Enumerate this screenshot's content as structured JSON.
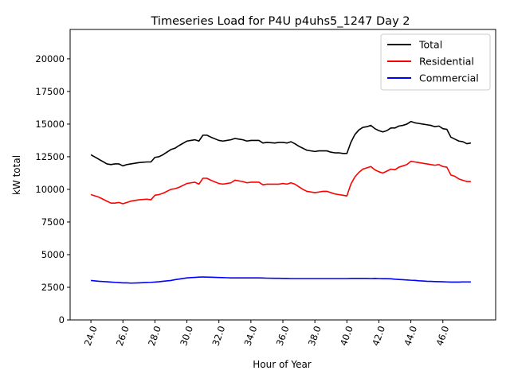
{
  "chart_data": {
    "type": "line",
    "title": "Timeseries Load for P4U p4uhs5_1247  Day 2",
    "xlabel": "Hour of Year",
    "ylabel": "kW total",
    "xlim": [
      22.7,
      49.3
    ],
    "ylim": [
      0,
      22250
    ],
    "xticks": [
      24,
      26,
      28,
      30,
      32,
      34,
      36,
      38,
      40,
      42,
      44,
      46
    ],
    "xtick_labels": [
      "24.0",
      "26.0",
      "28.0",
      "30.0",
      "32.0",
      "34.0",
      "36.0",
      "38.0",
      "40.0",
      "42.0",
      "44.0",
      "46.0"
    ],
    "yticks": [
      0,
      2500,
      5000,
      7500,
      10000,
      12500,
      15000,
      17500,
      20000
    ],
    "ytick_labels": [
      "0",
      "2500",
      "5000",
      "7500",
      "10000",
      "12500",
      "15000",
      "17500",
      "20000"
    ],
    "grid": false,
    "legend_position": "top-right",
    "x": [
      24.0,
      24.5,
      25.0,
      25.25,
      25.5,
      25.75,
      26.0,
      26.25,
      26.5,
      27.0,
      27.5,
      27.75,
      28.0,
      28.25,
      28.5,
      29.0,
      29.25,
      29.5,
      30.0,
      30.25,
      30.5,
      30.75,
      31.0,
      31.25,
      31.5,
      32.0,
      32.25,
      32.5,
      32.75,
      33.0,
      33.25,
      33.5,
      33.75,
      34.0,
      34.25,
      34.5,
      34.75,
      35.0,
      35.5,
      35.75,
      36.0,
      36.25,
      36.5,
      36.75,
      37.0,
      37.25,
      37.5,
      38.0,
      38.25,
      38.5,
      38.75,
      39.0,
      39.25,
      39.5,
      39.75,
      40.0,
      40.25,
      40.5,
      40.75,
      41.0,
      41.25,
      41.5,
      41.75,
      42.0,
      42.25,
      42.5,
      42.75,
      43.0,
      43.25,
      43.5,
      43.75,
      44.0,
      44.25,
      44.5,
      44.75,
      45.0,
      45.25,
      45.5,
      45.75,
      46.0,
      46.25,
      46.5,
      46.75,
      47.0,
      47.25,
      47.5,
      47.75
    ],
    "series": [
      {
        "name": "Total",
        "color": "#000000",
        "values": [
          12650,
          12300,
          11950,
          11900,
          11950,
          11950,
          11800,
          11900,
          11950,
          12050,
          12100,
          12100,
          12450,
          12500,
          12650,
          13050,
          13150,
          13350,
          13700,
          13750,
          13800,
          13700,
          14150,
          14150,
          14000,
          13750,
          13700,
          13750,
          13800,
          13900,
          13850,
          13800,
          13700,
          13750,
          13750,
          13750,
          13550,
          13600,
          13550,
          13600,
          13600,
          13550,
          13650,
          13500,
          13300,
          13150,
          13000,
          12900,
          12950,
          12950,
          12950,
          12850,
          12800,
          12800,
          12750,
          12750,
          13600,
          14200,
          14550,
          14750,
          14800,
          14900,
          14650,
          14500,
          14400,
          14500,
          14700,
          14700,
          14850,
          14900,
          15000,
          15200,
          15100,
          15050,
          15000,
          14950,
          14900,
          14800,
          14850,
          14650,
          14600,
          14000,
          13850,
          13700,
          13650,
          13500,
          13550
        ]
      },
      {
        "name": "Residential",
        "color": "#ff0000",
        "values": [
          9600,
          9400,
          9100,
          8950,
          8950,
          9000,
          8900,
          9000,
          9100,
          9200,
          9250,
          9200,
          9550,
          9600,
          9700,
          10000,
          10050,
          10150,
          10450,
          10500,
          10550,
          10400,
          10850,
          10850,
          10700,
          10450,
          10400,
          10450,
          10500,
          10700,
          10650,
          10600,
          10500,
          10550,
          10550,
          10550,
          10350,
          10400,
          10400,
          10400,
          10450,
          10400,
          10500,
          10400,
          10200,
          10000,
          9850,
          9750,
          9800,
          9850,
          9850,
          9750,
          9650,
          9600,
          9550,
          9500,
          10400,
          10950,
          11300,
          11550,
          11650,
          11750,
          11500,
          11350,
          11250,
          11400,
          11550,
          11500,
          11700,
          11800,
          11900,
          12150,
          12100,
          12050,
          12000,
          11950,
          11900,
          11850,
          11900,
          11750,
          11700,
          11100,
          11000,
          10800,
          10700,
          10600,
          10600
        ]
      },
      {
        "name": "Commercial",
        "color": "#0000ff",
        "values": [
          3020,
          2960,
          2920,
          2900,
          2880,
          2860,
          2840,
          2840,
          2820,
          2840,
          2870,
          2880,
          2900,
          2920,
          2960,
          3020,
          3080,
          3130,
          3220,
          3240,
          3260,
          3280,
          3290,
          3280,
          3270,
          3250,
          3240,
          3230,
          3220,
          3220,
          3220,
          3220,
          3220,
          3220,
          3220,
          3220,
          3210,
          3200,
          3190,
          3190,
          3180,
          3180,
          3170,
          3170,
          3170,
          3170,
          3170,
          3170,
          3170,
          3170,
          3170,
          3170,
          3170,
          3170,
          3170,
          3170,
          3180,
          3180,
          3180,
          3180,
          3180,
          3170,
          3180,
          3170,
          3160,
          3160,
          3150,
          3120,
          3100,
          3080,
          3060,
          3040,
          3030,
          3000,
          2980,
          2960,
          2950,
          2940,
          2930,
          2920,
          2910,
          2900,
          2900,
          2900,
          2910,
          2910,
          2910
        ]
      }
    ]
  }
}
